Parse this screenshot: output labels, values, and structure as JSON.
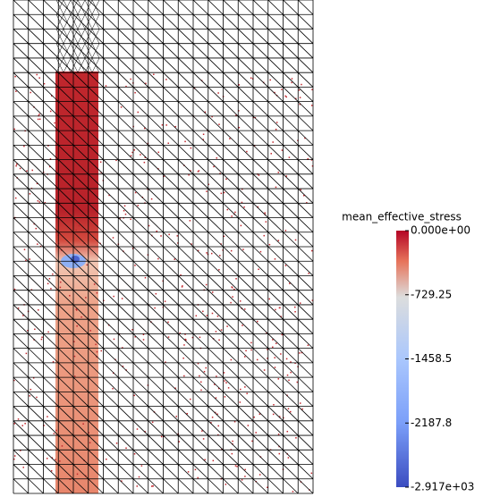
{
  "colorbar": {
    "title": "mean_effective_stress",
    "range": [
      -2917,
      0
    ],
    "ticks": [
      {
        "value": 0,
        "label": "0.000e+00"
      },
      -729.25,
      -1458.5,
      -2187.8,
      {
        "value": -2917,
        "label": "-2.917e+03"
      }
    ]
  }
}
